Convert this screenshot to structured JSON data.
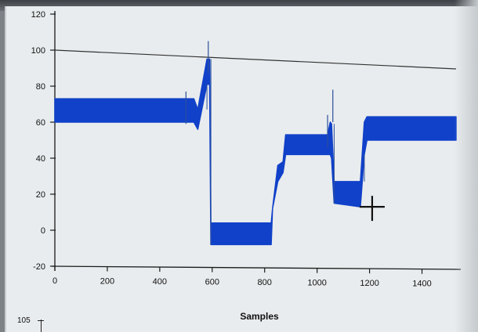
{
  "colors": {
    "series": "#1141c9",
    "axis": "#1a1a1a",
    "background": "#e9ecee"
  },
  "chart_data": {
    "type": "line",
    "title": "",
    "xlabel": "Samples",
    "ylabel": "",
    "xlim": [
      0,
      1500
    ],
    "ylim": [
      -20,
      120
    ],
    "xticks": [
      0,
      200,
      400,
      600,
      800,
      1000,
      1200,
      1400
    ],
    "yticks": [
      -20,
      0,
      20,
      40,
      60,
      80,
      100,
      120
    ],
    "grid": false,
    "legend": "none",
    "series": [
      {
        "band_min": [
          [
            0,
            60
          ],
          [
            530,
            60
          ],
          [
            545,
            56
          ],
          [
            580,
            81
          ],
          [
            590,
            81
          ],
          [
            595,
            -8
          ],
          [
            730,
            -8
          ],
          [
            800,
            -8
          ],
          [
            825,
            -8
          ],
          [
            830,
            12
          ],
          [
            850,
            27
          ],
          [
            870,
            32
          ],
          [
            880,
            42
          ],
          [
            900,
            42
          ],
          [
            1020,
            42
          ],
          [
            1040,
            42
          ],
          [
            1050,
            42
          ],
          [
            1055,
            40
          ],
          [
            1065,
            15
          ],
          [
            1165,
            13
          ],
          [
            1180,
            42
          ],
          [
            1190,
            50
          ],
          [
            1470,
            50
          ],
          [
            1530,
            50
          ]
        ],
        "band_max": [
          [
            0,
            73
          ],
          [
            530,
            73
          ],
          [
            545,
            67
          ],
          [
            580,
            95
          ],
          [
            590,
            95
          ],
          [
            595,
            4
          ],
          [
            730,
            4
          ],
          [
            800,
            4
          ],
          [
            825,
            4
          ],
          [
            830,
            12
          ],
          [
            850,
            36
          ],
          [
            870,
            38
          ],
          [
            880,
            53
          ],
          [
            900,
            53
          ],
          [
            1020,
            53
          ],
          [
            1040,
            53
          ],
          [
            1050,
            60
          ],
          [
            1055,
            59
          ],
          [
            1065,
            27
          ],
          [
            1165,
            27
          ],
          [
            1180,
            60
          ],
          [
            1190,
            63
          ],
          [
            1470,
            63
          ],
          [
            1530,
            63
          ]
        ]
      }
    ],
    "reference_lines": [
      {
        "y": 100
      }
    ],
    "spikes": [
      {
        "x": 500,
        "y": 77
      },
      {
        "x": 585,
        "y": 105
      },
      {
        "x": 1040,
        "y": 64
      },
      {
        "x": 1060,
        "y": 78
      }
    ],
    "cursor": {
      "x": 1210,
      "y": 13
    }
  },
  "second_plot": {
    "top_tick_label": "105"
  }
}
